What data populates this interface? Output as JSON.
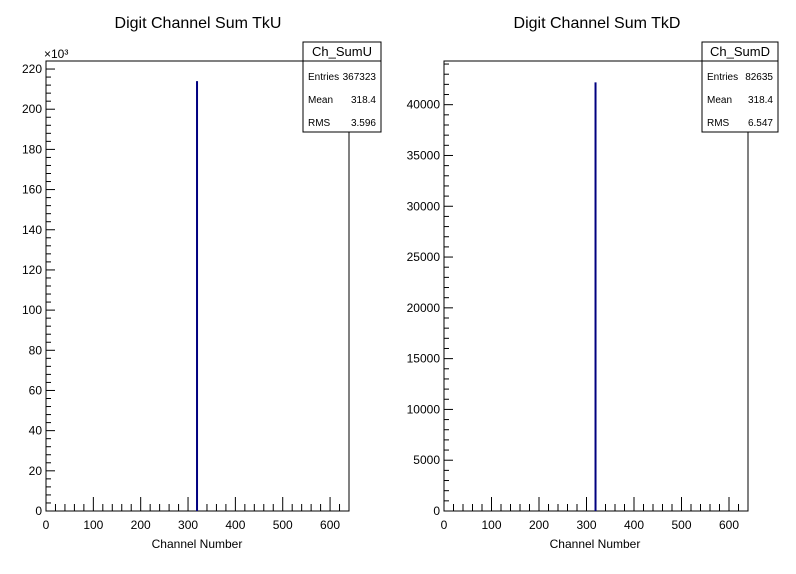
{
  "chart_data": [
    {
      "type": "bar",
      "title": "Digit Channel Sum TkU",
      "xlabel": "Channel Number",
      "ylabel": "",
      "xlim": [
        0,
        640
      ],
      "ylim": [
        0,
        224000
      ],
      "y_multiplier_label": "×10³",
      "x_ticks": [
        "0",
        "100",
        "200",
        "300",
        "400",
        "500",
        "600"
      ],
      "y_ticks": [
        "0",
        "20",
        "40",
        "60",
        "80",
        "100",
        "120",
        "140",
        "160",
        "180",
        "200",
        "220"
      ],
      "y_tick_values": [
        0,
        20000,
        40000,
        60000,
        80000,
        100000,
        120000,
        140000,
        160000,
        180000,
        200000,
        220000
      ],
      "x_tick_values": [
        0,
        100,
        200,
        300,
        400,
        500,
        600
      ],
      "series": [
        {
          "x": [
            319
          ],
          "values": [
            214000
          ]
        }
      ],
      "color": "#000080",
      "stats": {
        "name": "Ch_SumU",
        "rows": [
          {
            "label": "Entries",
            "value": "367323"
          },
          {
            "label": "Mean",
            "value": "318.4"
          },
          {
            "label": "RMS",
            "value": "3.596"
          }
        ]
      }
    },
    {
      "type": "bar",
      "title": "Digit Channel Sum TkD",
      "xlabel": "Channel Number",
      "ylabel": "",
      "xlim": [
        0,
        640
      ],
      "ylim": [
        0,
        44300
      ],
      "x_ticks": [
        "0",
        "100",
        "200",
        "300",
        "400",
        "500",
        "600"
      ],
      "y_ticks": [
        "0",
        "5000",
        "10000",
        "15000",
        "20000",
        "25000",
        "30000",
        "35000",
        "40000"
      ],
      "y_tick_values": [
        0,
        5000,
        10000,
        15000,
        20000,
        25000,
        30000,
        35000,
        40000
      ],
      "x_tick_values": [
        0,
        100,
        200,
        300,
        400,
        500,
        600
      ],
      "series": [
        {
          "x": [
            319
          ],
          "values": [
            42200
          ]
        }
      ],
      "color": "#000080",
      "stats": {
        "name": "Ch_SumD",
        "rows": [
          {
            "label": "Entries",
            "value": "82635"
          },
          {
            "label": "Mean",
            "value": "318.4"
          },
          {
            "label": "RMS",
            "value": "6.547"
          }
        ]
      }
    }
  ]
}
